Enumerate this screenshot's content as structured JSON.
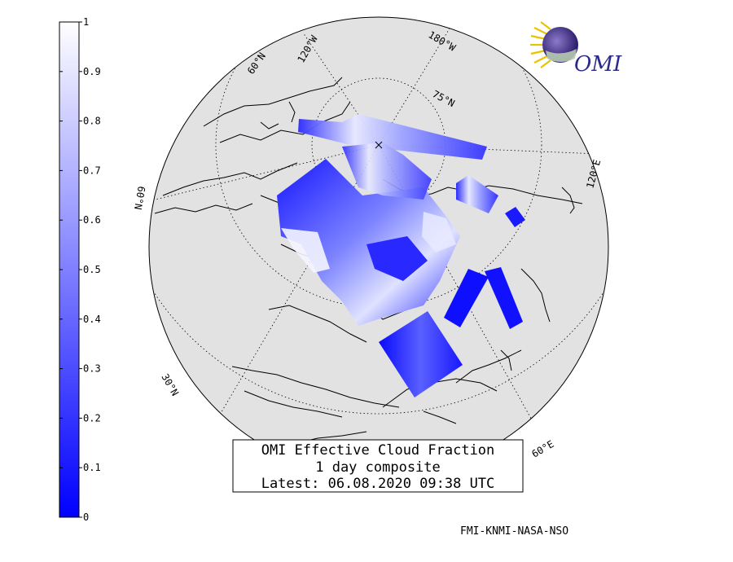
{
  "colorbar": {
    "ticks": [
      "0",
      "0.1",
      "0.2",
      "0.3",
      "0.4",
      "0.5",
      "0.6",
      "0.7",
      "0.8",
      "0.9",
      "1"
    ],
    "min": 0,
    "max": 1,
    "color_low": "#0000ff",
    "color_high": "#ffffff"
  },
  "grid_labels": {
    "lon_60w": "60°N",
    "lon_120w": "120°W",
    "lon_180w": "180°W",
    "lat_75n": "75°N",
    "lon_120e": "120°E",
    "lat_60n": "60°N",
    "lat_30n": "30°N",
    "lon_60e": "60°E"
  },
  "title": {
    "line1": "OMI Effective Cloud Fraction",
    "line2": "1 day composite",
    "line3": "Latest: 06.08.2020 09:38 UTC"
  },
  "logo": {
    "text": "OMI"
  },
  "credit": "FMI-KNMI-NASA-NSO",
  "colors": {
    "globe_fill": "#e2e2e2",
    "coast": "#000000",
    "swath_dark": "#0a0aff",
    "swath_light": "#cfd2ff"
  }
}
